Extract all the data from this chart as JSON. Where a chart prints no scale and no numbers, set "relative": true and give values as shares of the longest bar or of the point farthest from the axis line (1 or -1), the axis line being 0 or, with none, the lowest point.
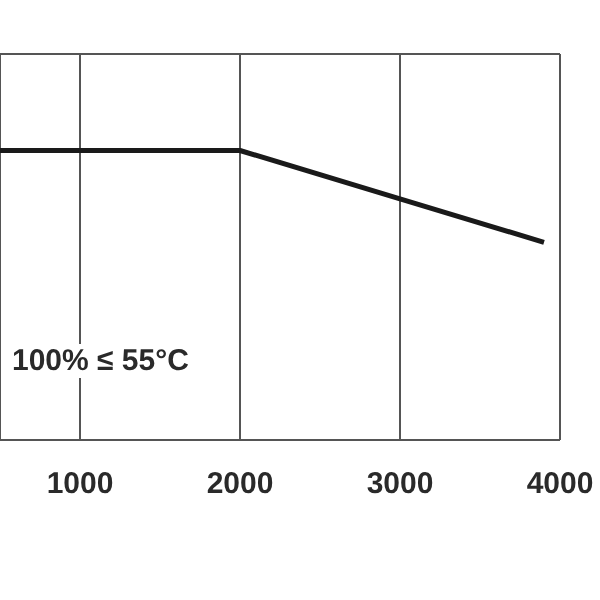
{
  "chart_data": {
    "type": "line",
    "relative": true,
    "x": [
      500,
      2000,
      3000,
      3900
    ],
    "series": [
      {
        "color": "#1a1a1a",
        "values": [
          1,
          1,
          0.833,
          0.683
        ]
      }
    ],
    "xlim": [
      500,
      4000
    ],
    "xticks": [
      1000,
      2000,
      3000,
      4000
    ],
    "grid": true,
    "tick_labels": "x",
    "marker": "none",
    "line_style": "solid",
    "legend": false,
    "annotations": [
      "100% ≤ 55°C"
    ]
  }
}
